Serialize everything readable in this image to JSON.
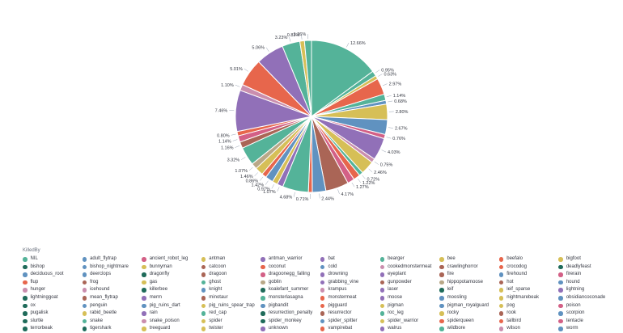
{
  "chart_data": {
    "type": "pie",
    "legend_title": "KilledBy",
    "legend_position": "bottom",
    "slices": [
      {
        "name": "NIL",
        "value": 12.66,
        "color": "#54B399",
        "label": "12.66%"
      },
      {
        "name": "bat",
        "value": 0.95,
        "color": "#54B399",
        "label": "0.95%"
      },
      {
        "name": "bee",
        "value": 0.63,
        "color": "#D6BF57",
        "label": "0.63%"
      },
      {
        "name": "beefalo",
        "value": 2.97,
        "color": "#E7664C",
        "label": "2.97%"
      },
      {
        "name": "bigfoot",
        "value": 1.14,
        "color": "#54B399",
        "label": "1.14%"
      },
      {
        "name": "bishop",
        "value": 0.68,
        "color": "#6092C0",
        "label": "0.68%"
      },
      {
        "name": "cookedmonstermeat",
        "value": 2.8,
        "color": "#D6BF57",
        "label": "2.80%"
      },
      {
        "name": "crawlinghorror",
        "value": 2.67,
        "color": "#6092C0",
        "label": "2.67%"
      },
      {
        "name": "crocodog",
        "value": 0.76,
        "color": "#D36086",
        "label": "0.76%"
      },
      {
        "name": "deadlyfeast",
        "value": 4.03,
        "color": "#9170B8",
        "label": "4.03%"
      },
      {
        "name": "deciduous_root",
        "value": 0.75,
        "color": "#CA8EAE",
        "label": "0.75%"
      },
      {
        "name": "fire",
        "value": 2.46,
        "color": "#D6BF57",
        "label": "2.46%"
      },
      {
        "name": "firehound",
        "value": 0.72,
        "color": "#54B399",
        "label": "0.72%"
      },
      {
        "name": "frog",
        "value": 1.22,
        "color": "#E7664C",
        "label": "1.22%"
      },
      {
        "name": "gas",
        "value": 1.27,
        "color": "#D36086",
        "label": "1.27%"
      },
      {
        "name": "ghost",
        "value": 4.17,
        "color": "#AA6556",
        "label": "4.17%"
      },
      {
        "name": "hound",
        "value": 2.44,
        "color": "#6092C0",
        "label": "2.44%"
      },
      {
        "name": "hunger",
        "value": 0.71,
        "color": "#E7664C",
        "label": "0.71%"
      },
      {
        "name": "knight",
        "value": 4.68,
        "color": "#54B399",
        "label": "4.68%"
      },
      {
        "name": "lightning",
        "value": 1.07,
        "color": "#9170B8",
        "label": "1.07%"
      },
      {
        "name": "merm",
        "value": 0.97,
        "color": "#D6BF57",
        "label": "0.97%"
      },
      {
        "name": "monstermeat",
        "value": 1.42,
        "color": "#6092C0",
        "label": "1.42%"
      },
      {
        "name": "pigman",
        "value": 0.86,
        "color": "#E7664C",
        "label": "0.86%"
      },
      {
        "name": "poison",
        "value": 1.46,
        "color": "#D6BF57",
        "label": "1.46%"
      },
      {
        "name": "rain",
        "value": 1.07,
        "color": "#B9A888",
        "label": "1.07%"
      },
      {
        "name": "resurrection_penalty",
        "value": 3.32,
        "color": "#54B399",
        "label": "3.32%"
      },
      {
        "name": "rook",
        "value": 1.16,
        "color": "#AA6556",
        "label": "1.16%"
      },
      {
        "name": "scorpion",
        "value": 1.14,
        "color": "#D36086",
        "label": "1.14%"
      },
      {
        "name": "snake",
        "value": 0.8,
        "color": "#E7664C",
        "label": "0.80%"
      },
      {
        "name": "spider",
        "value": 7.46,
        "color": "#9170B8",
        "label": "7.46%"
      },
      {
        "name": "spider_warrior",
        "value": 1.1,
        "color": "#CA8EAE",
        "label": "1.10%"
      },
      {
        "name": "tentacle",
        "value": 5.01,
        "color": "#E7664C",
        "label": "5.01%"
      },
      {
        "name": "terrorbeak",
        "value": 5.06,
        "color": "#9170B8",
        "label": "5.06%"
      },
      {
        "name": "treeguard",
        "value": 3.23,
        "color": "#54B399",
        "label": "3.23%"
      },
      {
        "name": "wilson",
        "value": 0.83,
        "color": "#D6BF57",
        "label": "0.83%"
      },
      {
        "name": "worm",
        "value": 1.26,
        "color": "#54B399",
        "label": "1.26%"
      }
    ],
    "legend": [
      {
        "name": "NIL",
        "color": "#54B399"
      },
      {
        "name": "adult_flytrap",
        "color": "#6092C0"
      },
      {
        "name": "ancient_robot_leg",
        "color": "#D36086"
      },
      {
        "name": "antman",
        "color": "#D6BF57"
      },
      {
        "name": "antman_warrior",
        "color": "#9170B8"
      },
      {
        "name": "bat",
        "color": "#9170B8"
      },
      {
        "name": "bearger",
        "color": "#54B399"
      },
      {
        "name": "bee",
        "color": "#D6BF57"
      },
      {
        "name": "beefalo",
        "color": "#E7664C"
      },
      {
        "name": "bigfoot",
        "color": "#D6BF57"
      },
      {
        "name": "bishop",
        "color": "#1F6B5A"
      },
      {
        "name": "bishop_nightmare",
        "color": "#6092C0"
      },
      {
        "name": "bunnyman",
        "color": "#D6BF57"
      },
      {
        "name": "catcoon",
        "color": "#AA6556"
      },
      {
        "name": "coconut",
        "color": "#E7664C"
      },
      {
        "name": "cold",
        "color": "#6092C0"
      },
      {
        "name": "cookedmonstermeat",
        "color": "#CA8EAE"
      },
      {
        "name": "crawlinghorror",
        "color": "#AA6556"
      },
      {
        "name": "crocodog",
        "color": "#E7664C"
      },
      {
        "name": "deadlyfeast",
        "color": "#1F6B5A"
      },
      {
        "name": "deciduous_root",
        "color": "#6092C0"
      },
      {
        "name": "deerclops",
        "color": "#6092C0"
      },
      {
        "name": "dragonfly",
        "color": "#1F6B5A"
      },
      {
        "name": "dragoon",
        "color": "#AA6556"
      },
      {
        "name": "dragoonegg_falling",
        "color": "#D36086"
      },
      {
        "name": "drowning",
        "color": "#9170B8"
      },
      {
        "name": "eyeplant",
        "color": "#9170B8"
      },
      {
        "name": "fire",
        "color": "#AA6556"
      },
      {
        "name": "firehound",
        "color": "#6092C0"
      },
      {
        "name": "firerain",
        "color": "#D36086"
      },
      {
        "name": "flup",
        "color": "#E7664C"
      },
      {
        "name": "frog",
        "color": "#AA6556"
      },
      {
        "name": "gas",
        "color": "#D6BF57"
      },
      {
        "name": "ghost",
        "color": "#54B399"
      },
      {
        "name": "goblin",
        "color": "#B9A888"
      },
      {
        "name": "grabbing_vine",
        "color": "#9170B8"
      },
      {
        "name": "gunpowder",
        "color": "#AA6556"
      },
      {
        "name": "hippopotamoose",
        "color": "#B9A888"
      },
      {
        "name": "hot",
        "color": "#AA6556"
      },
      {
        "name": "hound",
        "color": "#6092C0"
      },
      {
        "name": "hunger",
        "color": "#CA8EAE"
      },
      {
        "name": "icehound",
        "color": "#CA8EAE"
      },
      {
        "name": "killerbee",
        "color": "#1F6B5A"
      },
      {
        "name": "knight",
        "color": "#6092C0"
      },
      {
        "name": "koalefant_summer",
        "color": "#1F6B5A"
      },
      {
        "name": "krampus",
        "color": "#CA8EAE"
      },
      {
        "name": "laser",
        "color": "#9170B8"
      },
      {
        "name": "leif",
        "color": "#1F6B5A"
      },
      {
        "name": "leif_sparse",
        "color": "#D6BF57"
      },
      {
        "name": "lightning",
        "color": "#9170B8"
      },
      {
        "name": "lightninggoat",
        "color": "#1F6B5A"
      },
      {
        "name": "mean_flytrap",
        "color": "#AA6556"
      },
      {
        "name": "merm",
        "color": "#9170B8"
      },
      {
        "name": "minotaur",
        "color": "#AA6556"
      },
      {
        "name": "monsterlasagna",
        "color": "#54B399"
      },
      {
        "name": "monstermeat",
        "color": "#E7664C"
      },
      {
        "name": "moose",
        "color": "#9170B8"
      },
      {
        "name": "moosling",
        "color": "#6092C0"
      },
      {
        "name": "nightmarebeak",
        "color": "#D6BF57"
      },
      {
        "name": "obsidiancoconade",
        "color": "#6092C0"
      },
      {
        "name": "ox",
        "color": "#1F6B5A"
      },
      {
        "name": "penguin",
        "color": "#6092C0"
      },
      {
        "name": "pig_ruins_dart",
        "color": "#6092C0"
      },
      {
        "name": "pig_ruins_spear_trap",
        "color": "#D6BF57"
      },
      {
        "name": "pigbandit",
        "color": "#6092C0"
      },
      {
        "name": "pigguard",
        "color": "#E7664C"
      },
      {
        "name": "pigman",
        "color": "#D6BF57"
      },
      {
        "name": "pigman_royalguard",
        "color": "#6092C0"
      },
      {
        "name": "pog",
        "color": "#D6BF57"
      },
      {
        "name": "poison",
        "color": "#D36086"
      },
      {
        "name": "pugalisk",
        "color": "#1F6B5A"
      },
      {
        "name": "rabid_beetle",
        "color": "#D6BF57"
      },
      {
        "name": "rain",
        "color": "#9170B8"
      },
      {
        "name": "red_cap",
        "color": "#54B399"
      },
      {
        "name": "resurrection_penalty",
        "color": "#1F6B5A"
      },
      {
        "name": "resurrector",
        "color": "#AA6556"
      },
      {
        "name": "roc_leg",
        "color": "#54B399"
      },
      {
        "name": "rocky",
        "color": "#D6BF57"
      },
      {
        "name": "rook",
        "color": "#AA6556"
      },
      {
        "name": "scorpion",
        "color": "#6092C0"
      },
      {
        "name": "slurtle",
        "color": "#1F6B5A"
      },
      {
        "name": "snake",
        "color": "#54B399"
      },
      {
        "name": "snake_poison",
        "color": "#CA8EAE"
      },
      {
        "name": "spider",
        "color": "#D6BF57"
      },
      {
        "name": "spider_monkey",
        "color": "#1F6B5A"
      },
      {
        "name": "spider_spitter",
        "color": "#6092C0"
      },
      {
        "name": "spider_warrior",
        "color": "#D6BF57"
      },
      {
        "name": "spiderqueen",
        "color": "#E7664C"
      },
      {
        "name": "tallbird",
        "color": "#E7664C"
      },
      {
        "name": "tentacle",
        "color": "#D36086"
      },
      {
        "name": "terrorbeak",
        "color": "#1F6B5A"
      },
      {
        "name": "tigershark",
        "color": "#1F6B5A"
      },
      {
        "name": "treeguard",
        "color": "#D6BF57"
      },
      {
        "name": "twister",
        "color": "#D6BF57"
      },
      {
        "name": "unknown",
        "color": "#9170B8"
      },
      {
        "name": "vampirebat",
        "color": "#E7664C"
      },
      {
        "name": "walrus",
        "color": "#9170B8"
      },
      {
        "name": "wildbore",
        "color": "#54B399"
      },
      {
        "name": "wilson",
        "color": "#CA8EAE"
      },
      {
        "name": "worm",
        "color": "#6092C0"
      }
    ]
  }
}
